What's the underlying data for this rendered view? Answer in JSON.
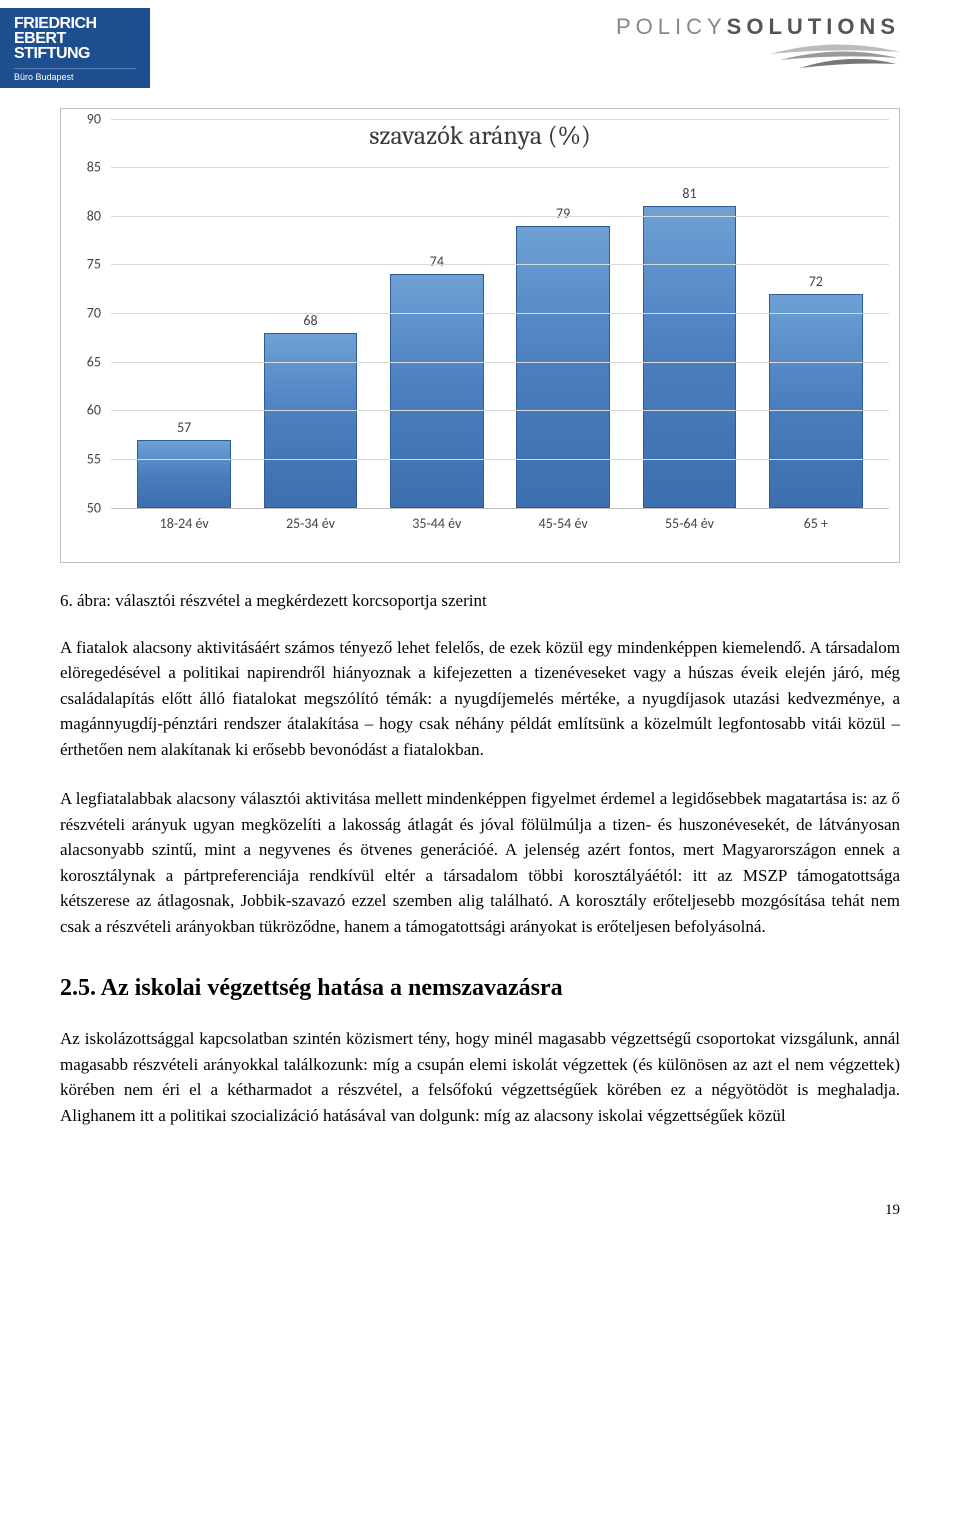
{
  "header": {
    "fes_line1": "FRIEDRICH",
    "fes_line2": "EBERT",
    "fes_line3": "STIFTUNG",
    "fes_sub": "Büro Budapest",
    "ps_thin": "POLICY",
    "ps_bold": "SOLUTIONS"
  },
  "chart": {
    "type": "bar",
    "title": "szavazók aránya (%)",
    "title_fontsize": 26,
    "title_color": "#3b3b3b",
    "ylim_min": 50,
    "ylim_max": 90,
    "ytick_step": 5,
    "yticks": [
      50,
      55,
      60,
      65,
      70,
      75,
      80,
      85,
      90
    ],
    "categories": [
      "18-24 év",
      "25-34 év",
      "35-44 év",
      "45-54 év",
      "55-64 év",
      "65 +"
    ],
    "values": [
      57,
      68,
      74,
      79,
      81,
      72
    ],
    "bar_color_top": "#6ea1d4",
    "bar_color_mid": "#4a7ebf",
    "bar_color_bottom": "#3d6fae",
    "bar_border": "#2f5b96",
    "grid_color": "#d9d9d9",
    "axis_color": "#bfbfbf",
    "label_fontsize": 14,
    "label_color": "#444444",
    "background_color": "#ffffff",
    "bar_width_ratio": 0.74
  },
  "caption": "6. ábra: választói részvétel a megkérdezett korcsoportja szerint",
  "para1": "A fiatalok alacsony aktivitásáért számos tényező lehet felelős, de ezek közül egy mindenképpen kiemelendő. A társadalom elöregedésével a politikai napirendről hiányoznak a kifejezetten a tizenéveseket vagy a húszas éveik elején járó, még családalapítás előtt álló fiatalokat megszólító témák: a nyugdíjemelés mértéke, a nyugdíjasok utazási kedvezménye, a magánnyugdíj-pénztári rendszer átalakítása – hogy csak néhány példát említsünk a közelmúlt legfontosabb vitái közül – érthetően nem alakítanak ki erősebb bevonódást a fiatalokban.",
  "para2": "A legfiatalabbak alacsony választói aktivitása mellett mindenképpen figyelmet érdemel a legidősebbek magatartása is: az ő részvételi arányuk ugyan megközelíti a lakosság átlagát és jóval fölülmúlja a tizen- és huszonévesekét, de látványosan alacsonyabb szintű, mint a negyvenes és ötvenes generációé. A jelenség azért fontos, mert Magyarországon ennek a korosztálynak a pártpreferenciája rendkívül eltér a társadalom többi korosztályáétól: itt az MSZP támogatottsága kétszerese az átlagosnak, Jobbik-szavazó ezzel szemben alig található. A korosztály erőteljesebb mozgósítása tehát nem csak a részvételi arányokban tükröződne, hanem a támogatottsági arányokat is erőteljesen befolyásolná.",
  "section_title": "2.5. Az iskolai végzettség hatása a nemszavazásra",
  "para3": "Az iskolázottsággal kapcsolatban szintén közismert tény, hogy minél magasabb végzettségű csoportokat vizsgálunk, annál magasabb részvételi arányokkal találkozunk: míg a csupán elemi iskolát végzettek (és különösen az azt el nem végzettek) körében nem éri el a kétharmadot a részvétel, a felsőfokú végzettségűek körében ez a négyötödöt is meghaladja. Alighanem itt a politikai szocializáció hatásával van dolgunk: míg az alacsony iskolai végzettségűek közül",
  "page_number": "19"
}
